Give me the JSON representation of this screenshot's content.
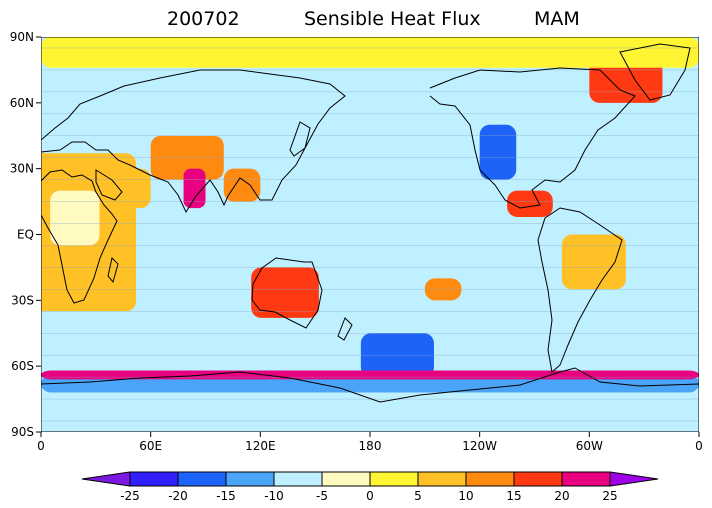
{
  "title": {
    "period": "200702",
    "variable": "Sensible Heat Flux",
    "season": "MAM"
  },
  "map": {
    "projection": "cylindrical-equidistant",
    "lon_range": [
      0,
      360
    ],
    "lat_range": [
      -90,
      90
    ],
    "lat_ticks": [
      {
        "lat": 90,
        "label": "90N"
      },
      {
        "lat": 60,
        "label": "60N"
      },
      {
        "lat": 30,
        "label": "30N"
      },
      {
        "lat": 0,
        "label": "EQ"
      },
      {
        "lat": -30,
        "label": "30S"
      },
      {
        "lat": -60,
        "label": "60S"
      },
      {
        "lat": -90,
        "label": "90S"
      }
    ],
    "lon_ticks": [
      {
        "lon": 0,
        "label": "0"
      },
      {
        "lon": 60,
        "label": "60E"
      },
      {
        "lon": 120,
        "label": "120E"
      },
      {
        "lon": 180,
        "label": "180"
      },
      {
        "lon": 240,
        "label": "120W"
      },
      {
        "lon": 300,
        "label": "60W"
      },
      {
        "lon": 360,
        "label": "0"
      }
    ]
  },
  "colorbar": {
    "labels": [
      "-25",
      "-20",
      "-15",
      "-10",
      "-5",
      "0",
      "5",
      "10",
      "15",
      "20",
      "25"
    ],
    "colors": [
      "#7d18e0",
      "#3020ff",
      "#1d63f7",
      "#4aa4f7",
      "#bff0ff",
      "#fffac0",
      "#fff532",
      "#ffc125",
      "#ff8a10",
      "#ff3a12",
      "#e80080",
      "#a000e8"
    ]
  },
  "chart_data": {
    "type": "heatmap",
    "title": "200702 Sensible Heat Flux MAM",
    "xlabel": "",
    "ylabel": "",
    "xlim": [
      0,
      360
    ],
    "ylim": [
      -90,
      90
    ],
    "levels": [
      -25,
      -20,
      -15,
      -10,
      -5,
      0,
      5,
      10,
      15,
      20,
      25
    ],
    "regions": [
      {
        "name": "",
        "lon": [
          -18,
          52
        ],
        "lat": [
          -35,
          37
        ],
        "value": 7
      },
      {
        "name": "",
        "lon": [
          5,
          32
        ],
        "lat": [
          -5,
          20
        ],
        "value": -3
      },
      {
        "name": "",
        "lon": [
          35,
          60
        ],
        "lat": [
          12,
          30
        ],
        "value": 8
      },
      {
        "name": "",
        "lon": [
          60,
          100
        ],
        "lat": [
          25,
          45
        ],
        "value": 12
      },
      {
        "name": "",
        "lon": [
          70,
          130
        ],
        "lat": [
          45,
          70
        ],
        "value": -8
      },
      {
        "name": "",
        "lon": [
          100,
          120
        ],
        "lat": [
          15,
          30
        ],
        "value": 14
      },
      {
        "name": "",
        "lon": [
          78,
          90
        ],
        "lat": [
          12,
          30
        ],
        "value": 20
      },
      {
        "name": "",
        "lon": [
          115,
          152
        ],
        "lat": [
          -38,
          -15
        ],
        "value": 16
      },
      {
        "name": "",
        "lon": [
          175,
          215
        ],
        "lat": [
          -65,
          -45
        ],
        "value": -16
      },
      {
        "name": "",
        "lon": [
          240,
          260
        ],
        "lat": [
          25,
          50
        ],
        "value": -18
      },
      {
        "name": "",
        "lon": [
          255,
          280
        ],
        "lat": [
          8,
          20
        ],
        "value": 18
      },
      {
        "name": "",
        "lon": [
          285,
          320
        ],
        "lat": [
          -25,
          0
        ],
        "value": 8
      },
      {
        "name": "",
        "lon": [
          280,
          300
        ],
        "lat": [
          -55,
          -30
        ],
        "value": -10
      },
      {
        "name": "",
        "lon": [
          0,
          360
        ],
        "lat": [
          -72,
          -64
        ],
        "value": -12
      },
      {
        "name": "",
        "lon": [
          0,
          360
        ],
        "lat": [
          -66,
          -62
        ],
        "value": 22
      },
      {
        "name": "",
        "lon": [
          210,
          230
        ],
        "lat": [
          -30,
          -20
        ],
        "value": 12
      },
      {
        "name": "",
        "lon": [
          300,
          340
        ],
        "lat": [
          60,
          80
        ],
        "value": 18
      },
      {
        "name": "",
        "lon": [
          0,
          360
        ],
        "lat": [
          76,
          90
        ],
        "value": 2
      }
    ]
  }
}
